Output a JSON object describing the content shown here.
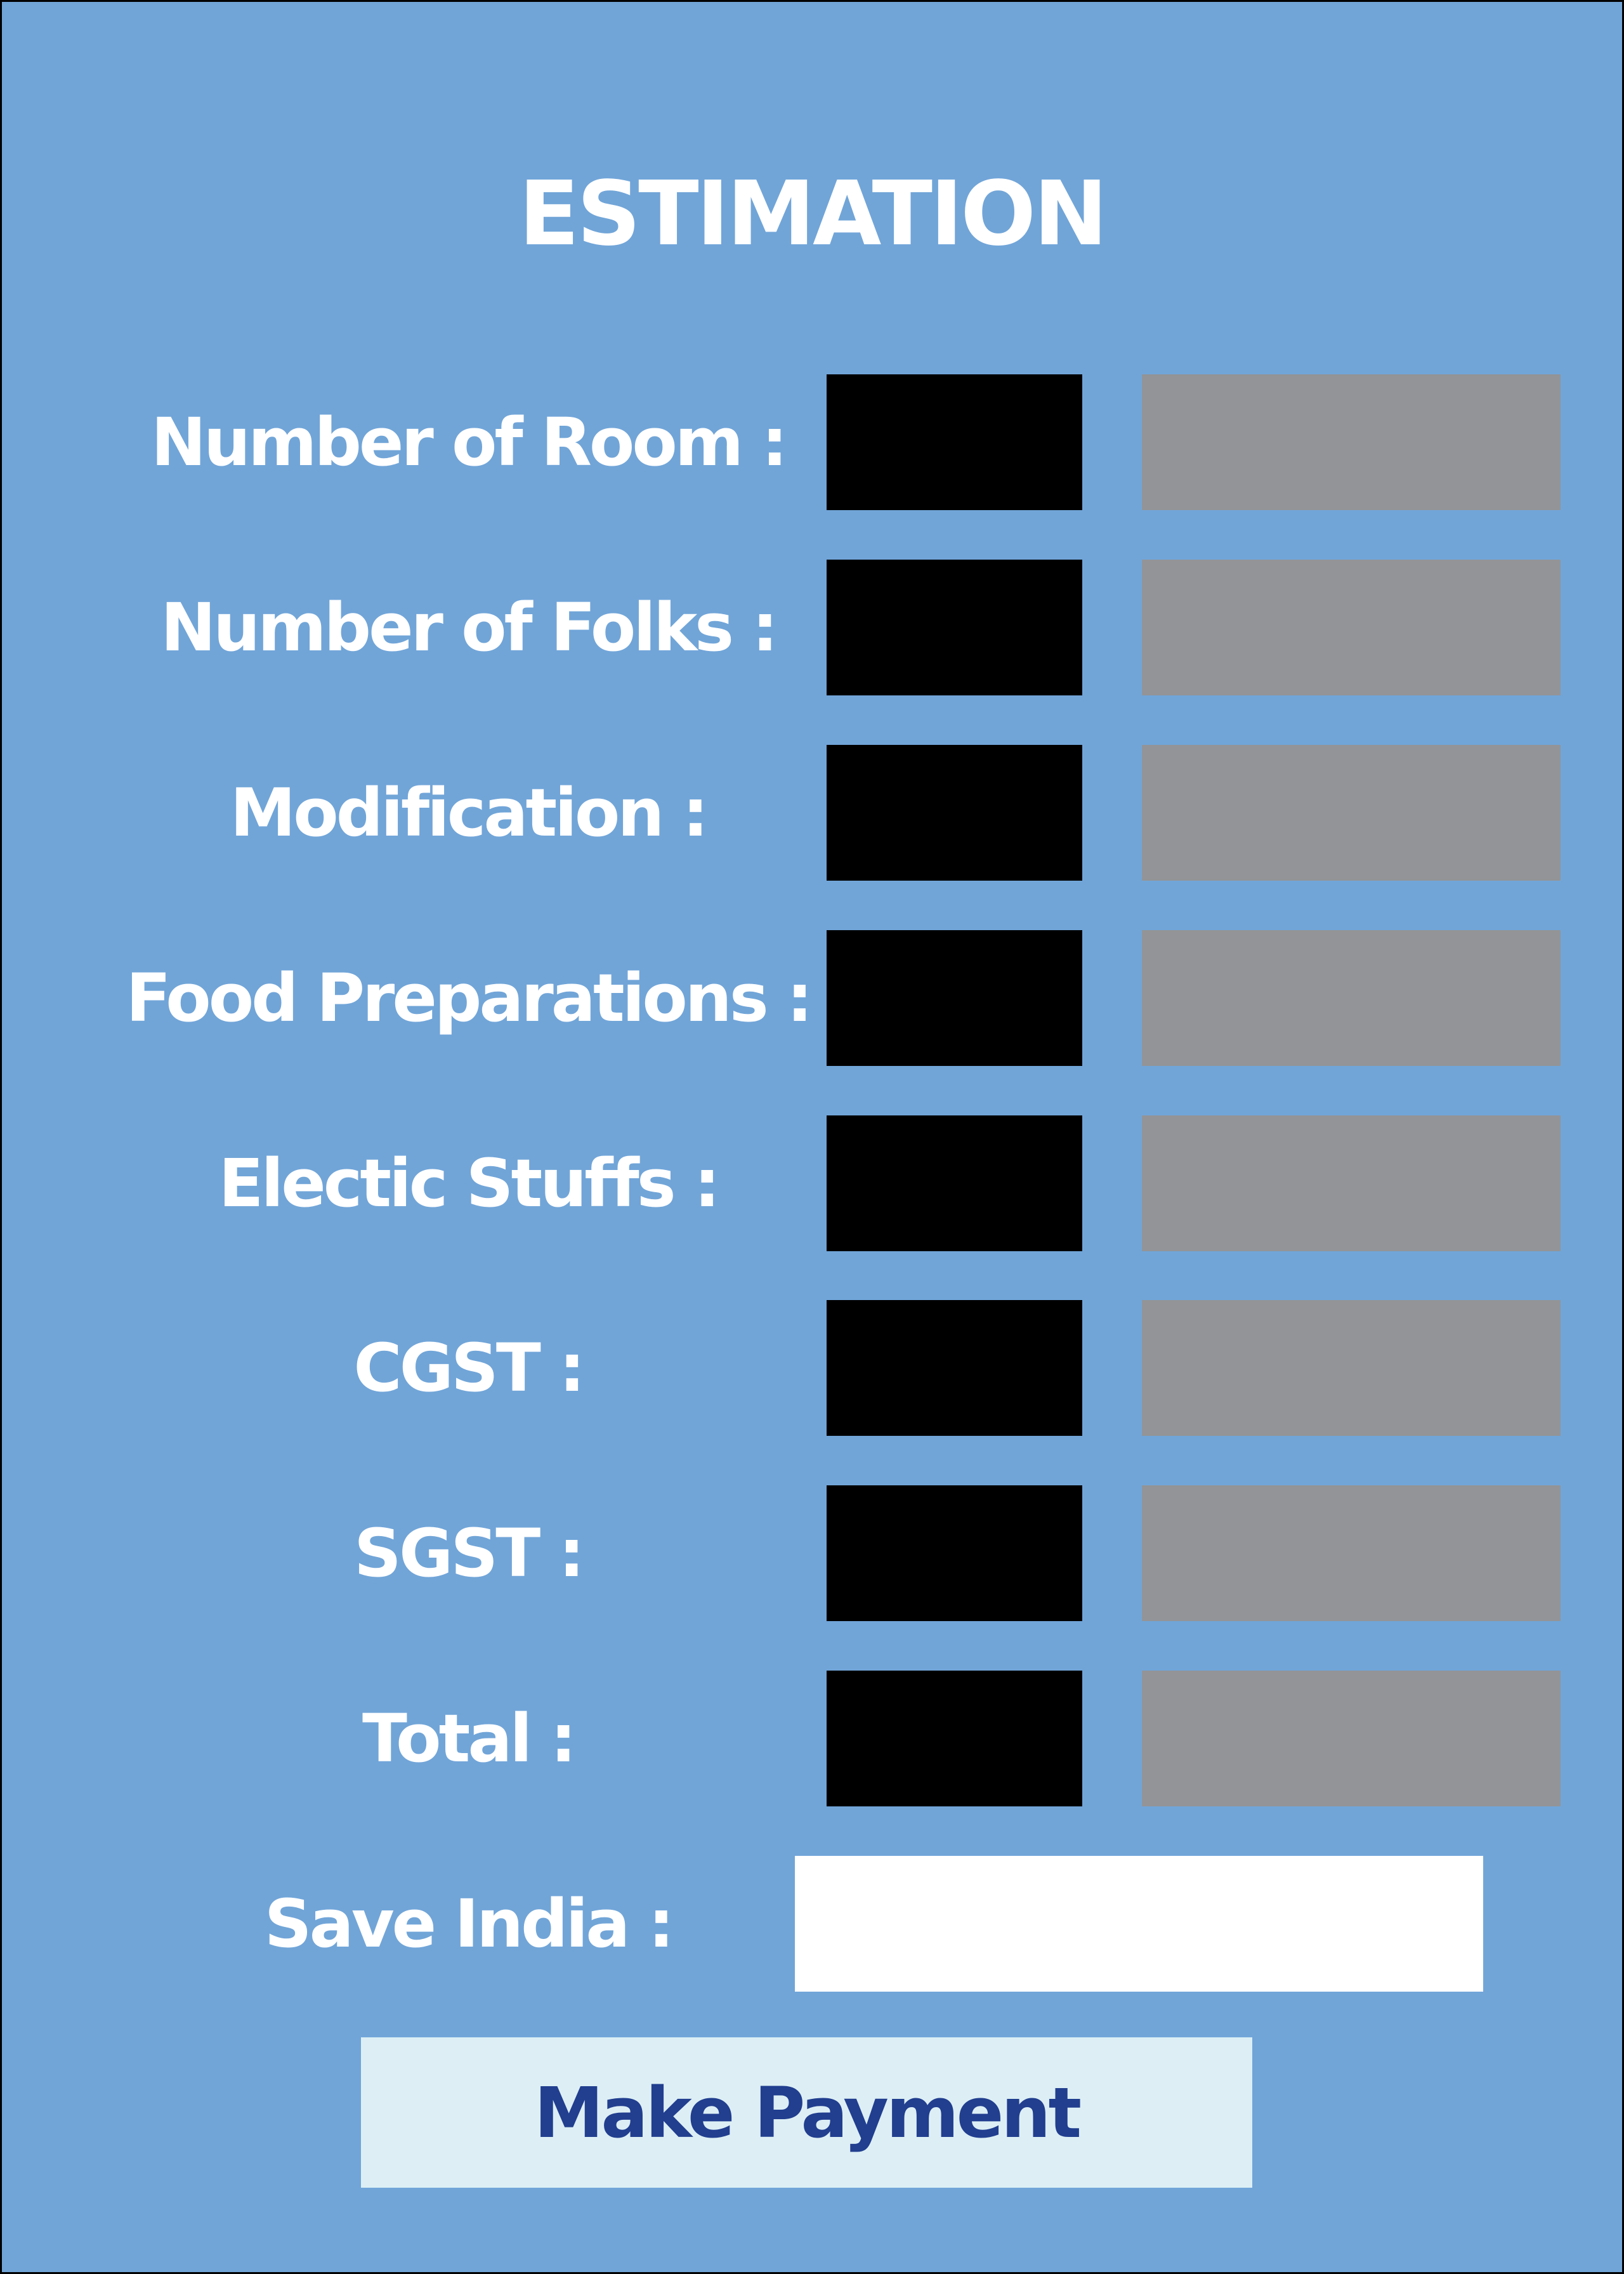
{
  "estimation": {
    "title": "ESTIMATION",
    "rows": [
      {
        "label": "Number of Room :"
      },
      {
        "label": "Number of Folks :"
      },
      {
        "label": "Modification :"
      },
      {
        "label": "Food Preparations :"
      },
      {
        "label": "Electic Stuffs :"
      },
      {
        "label": "CGST :"
      },
      {
        "label": "SGST :"
      },
      {
        "label": "Total :"
      }
    ],
    "save_india": {
      "label": "Save India :",
      "value": ""
    },
    "make_payment_label": "Make Payment"
  },
  "colors": {
    "background": "#71A5D8",
    "quantity_box": "#000000",
    "amount_box": "#939497",
    "button_background": "#DDEFF5",
    "button_text": "#213E8F",
    "text": "#FFFFFF"
  }
}
